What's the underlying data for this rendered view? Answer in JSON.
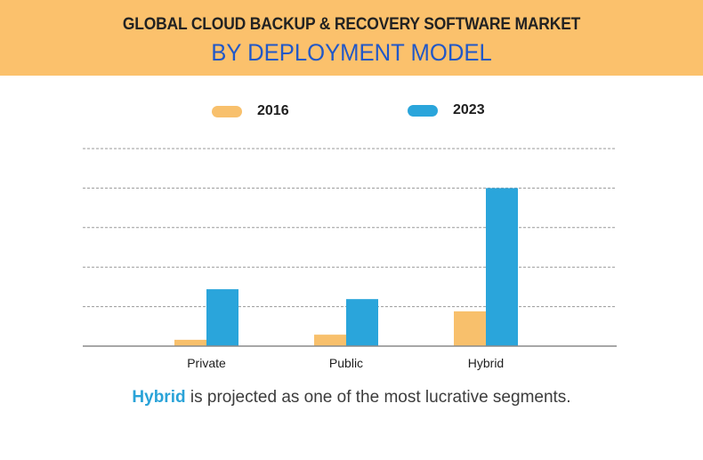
{
  "header": {
    "title_line1": "GLOBAL CLOUD BACKUP & RECOVERY SOFTWARE MARKET",
    "title_line2": "BY DEPLOYMENT MODEL"
  },
  "colors": {
    "header_bg": "#fbc16c",
    "title_line2": "#2258c7",
    "series_2016": "#f8c06c",
    "series_2023": "#2aa5db",
    "highlight_text": "#2aa3d8"
  },
  "footer": {
    "highlight": "Hybrid",
    "rest": " is projected as one of the most lucrative segments."
  },
  "chart_data": {
    "type": "bar",
    "title": "GLOBAL CLOUD BACKUP & RECOVERY SOFTWARE MARKET BY DEPLOYMENT MODEL",
    "xlabel": "",
    "ylabel": "",
    "categories": [
      "Private",
      "Public",
      "Hybrid"
    ],
    "series": [
      {
        "name": "2016",
        "color": "#f8c06c",
        "values": [
          0.16,
          0.29,
          0.88
        ]
      },
      {
        "name": "2023",
        "color": "#2aa5db",
        "values": [
          1.44,
          1.19,
          4.0
        ]
      }
    ],
    "ylim": [
      0,
      5
    ],
    "y_gridlines": [
      1,
      2,
      3,
      4,
      5
    ],
    "y_tick_labels_shown": false,
    "grid": true,
    "grid_style": "dashed",
    "legend": "top-center",
    "units_note": "relative units; axis values not printed"
  }
}
